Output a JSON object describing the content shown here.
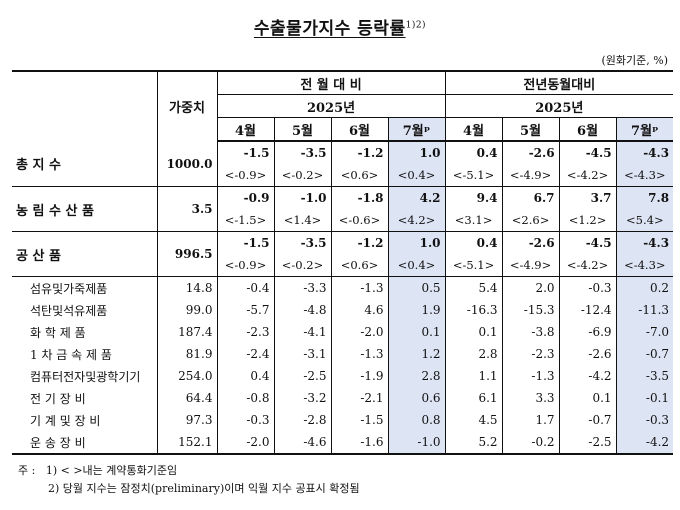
{
  "title": "수출물가지수 등락률",
  "title_sup": "1)2)",
  "unit": "(원화기준, %)",
  "header": {
    "weight": "가중치",
    "group1": "전 월 대 비",
    "group2": "전년동월대비",
    "year": "2025년",
    "months": [
      "4월",
      "5월",
      "6월",
      "7월ᵖ"
    ]
  },
  "rows": [
    {
      "name": "총 지 수",
      "weight": "1000.0",
      "major": true,
      "mom": [
        "-1.5",
        "-3.5",
        "-1.2",
        "1.0"
      ],
      "yoy": [
        "0.4",
        "-2.6",
        "-4.5",
        "-4.3"
      ],
      "mom_c": [
        "<-0.9>",
        "<-0.2>",
        "<0.6>",
        "<0.4>"
      ],
      "yoy_c": [
        "<-5.1>",
        "<-4.9>",
        "<-4.2>",
        "<-4.3>"
      ]
    },
    {
      "name": "농 림 수 산 품",
      "weight": "3.5",
      "major": true,
      "mom": [
        "-0.9",
        "-1.0",
        "-1.8",
        "4.2"
      ],
      "yoy": [
        "9.4",
        "6.7",
        "3.7",
        "7.8"
      ],
      "mom_c": [
        "<-1.5>",
        "<1.4>",
        "<-0.6>",
        "<4.2>"
      ],
      "yoy_c": [
        "<3.1>",
        "<2.6>",
        "<1.2>",
        "<5.4>"
      ]
    },
    {
      "name": "공 산 품",
      "weight": "996.5",
      "major": true,
      "mom": [
        "-1.5",
        "-3.5",
        "-1.2",
        "1.0"
      ],
      "yoy": [
        "0.4",
        "-2.6",
        "-4.5",
        "-4.3"
      ],
      "mom_c": [
        "<-0.9>",
        "<-0.2>",
        "<0.6>",
        "<0.4>"
      ],
      "yoy_c": [
        "<-5.1>",
        "<-4.9>",
        "<-4.2>",
        "<-4.3>"
      ]
    },
    {
      "name": "섬유및가죽제품",
      "weight": "14.8",
      "major": false,
      "mom": [
        "-0.4",
        "-3.3",
        "-1.3",
        "0.5"
      ],
      "yoy": [
        "5.4",
        "2.0",
        "-0.3",
        "0.2"
      ]
    },
    {
      "name": "석탄및석유제품",
      "weight": "99.0",
      "major": false,
      "mom": [
        "-5.7",
        "-4.8",
        "4.6",
        "1.9"
      ],
      "yoy": [
        "-16.3",
        "-15.3",
        "-12.4",
        "-11.3"
      ]
    },
    {
      "name": "화 학 제 품",
      "weight": "187.4",
      "major": false,
      "mom": [
        "-2.3",
        "-4.1",
        "-2.0",
        "0.1"
      ],
      "yoy": [
        "0.1",
        "-3.8",
        "-6.9",
        "-7.0"
      ]
    },
    {
      "name": "1 차 금 속 제 품",
      "weight": "81.9",
      "major": false,
      "mom": [
        "-2.4",
        "-3.1",
        "-1.3",
        "1.2"
      ],
      "yoy": [
        "2.8",
        "-2.3",
        "-2.6",
        "-0.7"
      ]
    },
    {
      "name": "컴퓨터전자및광학기기",
      "weight": "254.0",
      "major": false,
      "mom": [
        "0.4",
        "-2.5",
        "-1.9",
        "2.8"
      ],
      "yoy": [
        "1.1",
        "-1.3",
        "-4.2",
        "-3.5"
      ]
    },
    {
      "name": "전 기 장 비",
      "weight": "64.4",
      "major": false,
      "mom": [
        "-0.8",
        "-3.2",
        "-2.1",
        "0.6"
      ],
      "yoy": [
        "6.1",
        "3.3",
        "0.1",
        "-0.1"
      ]
    },
    {
      "name": "기 계 및 장 비",
      "weight": "97.3",
      "major": false,
      "mom": [
        "-0.3",
        "-2.8",
        "-1.5",
        "0.8"
      ],
      "yoy": [
        "4.5",
        "1.7",
        "-0.7",
        "-0.3"
      ]
    },
    {
      "name": "운 송 장 비",
      "weight": "152.1",
      "major": false,
      "mom": [
        "-2.0",
        "-4.6",
        "-1.6",
        "-1.0"
      ],
      "yoy": [
        "5.2",
        "-0.2",
        "-2.5",
        "-4.2"
      ]
    }
  ],
  "footnotes": {
    "lead": "주 :",
    "note1": "1) < >내는 계약통화기준임",
    "note2": "2) 당월 지수는 잠정치(preliminary)이며 익월 지수 공표시 확정됨"
  }
}
